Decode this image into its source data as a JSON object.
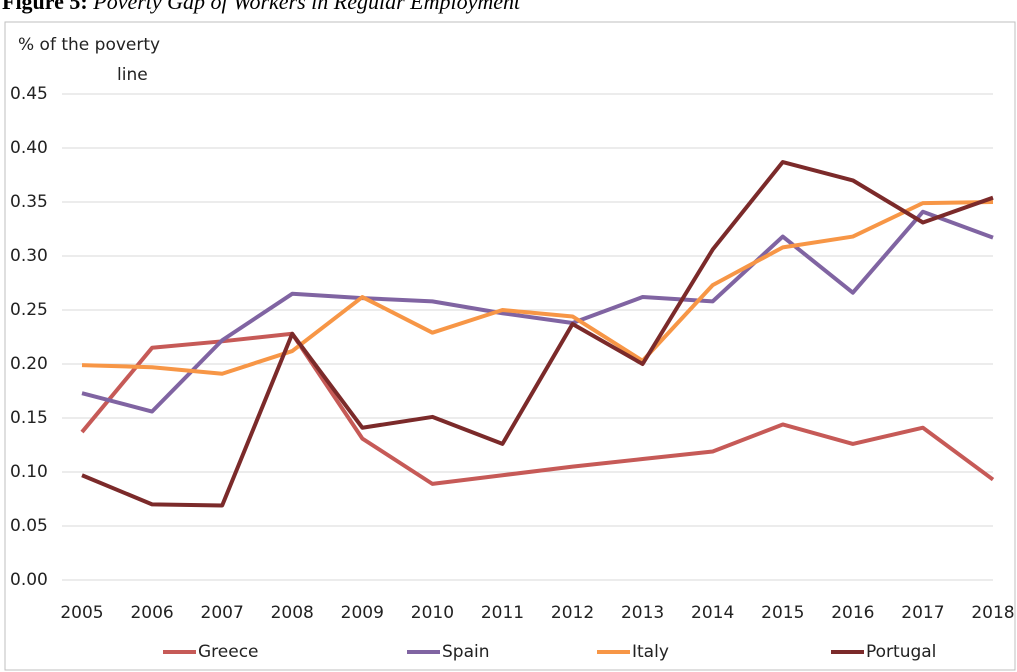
{
  "chart_data": {
    "type": "line",
    "figure_label": "Figure 5:",
    "title": "Poverty Gap of Workers in Regular Employment",
    "y_label": [
      "% of the poverty",
      "line"
    ],
    "categories": [
      "2005",
      "2006",
      "2007",
      "2008",
      "2009",
      "2010",
      "2011",
      "2012",
      "2013",
      "2014",
      "2015",
      "2016",
      "2017",
      "2018"
    ],
    "series": [
      {
        "name": "Greece",
        "color": "#c65a57",
        "values": [
          0.137,
          0.215,
          0.221,
          0.228,
          0.131,
          0.089,
          0.097,
          0.105,
          0.112,
          0.119,
          0.144,
          0.126,
          0.141,
          0.093
        ]
      },
      {
        "name": "Spain",
        "color": "#8064a2",
        "values": [
          0.173,
          0.156,
          0.222,
          0.265,
          0.261,
          0.258,
          0.247,
          0.238,
          0.262,
          0.258,
          0.318,
          0.266,
          0.341,
          0.317
        ]
      },
      {
        "name": "Italy",
        "color": "#f79646",
        "values": [
          0.199,
          0.197,
          0.191,
          0.212,
          0.262,
          0.229,
          0.25,
          0.244,
          0.203,
          0.273,
          0.308,
          0.318,
          0.349,
          0.35
        ]
      },
      {
        "name": "Portugal",
        "color": "#7b2a2a",
        "values": [
          0.097,
          0.07,
          0.069,
          0.228,
          0.141,
          0.151,
          0.126,
          0.237,
          0.2,
          0.306,
          0.387,
          0.37,
          0.331,
          0.354
        ]
      }
    ],
    "ylim": [
      0,
      0.45
    ],
    "yticks": [
      {
        "value": 0,
        "label": "0.00"
      },
      {
        "value": 0.05,
        "label": "0.05"
      },
      {
        "value": 0.1,
        "label": "0.10"
      },
      {
        "value": 0.15,
        "label": "0.15"
      },
      {
        "value": 0.2,
        "label": "0.20"
      },
      {
        "value": 0.25,
        "label": "0.25"
      },
      {
        "value": 0.3,
        "label": "0.30"
      },
      {
        "value": 0.35,
        "label": "0.35"
      },
      {
        "value": 0.4,
        "label": "0.40"
      },
      {
        "value": 0.45,
        "label": "0.45"
      }
    ],
    "grid": true,
    "legend": "bottom"
  }
}
